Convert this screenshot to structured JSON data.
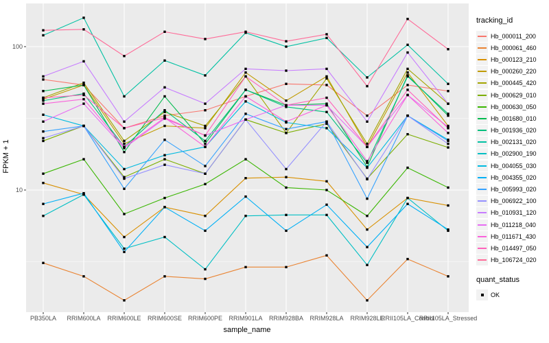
{
  "figure": {
    "y_axis": {
      "label": "FPKM + 1"
    },
    "x_axis": {
      "label": "sample_name"
    },
    "legend": {
      "tracking_title": "tracking_id",
      "quant_title": "quant_status",
      "quant_items": [
        {
          "label": "OK",
          "marker": "black-square"
        }
      ]
    }
  },
  "chart_data": {
    "type": "line",
    "title": "",
    "xlabel": "sample_name",
    "ylabel": "FPKM + 1",
    "y_scale": "log10",
    "ylim": [
      1.4,
      200
    ],
    "y_major_ticks": [
      100,
      10
    ],
    "y_minor_gridlines": [
      31.62,
      3.162
    ],
    "grid": "on",
    "legend_position": "right",
    "point_marker": "black-square",
    "quant_status_all": "OK",
    "panel_bg": "#ebebeb",
    "gridline_color": "#ffffff",
    "categories": [
      "PB350LA",
      "RRIM600LA",
      "RRIM600LE",
      "RRIM600SE",
      "RRIM600PE",
      "RRIM901LA",
      "RRIM928BA",
      "RRIM928LA",
      "RRIM928LE",
      "RRII105LA_Control",
      "RRII105LA_Stressed"
    ],
    "series": [
      {
        "name": "Hb_000011_200",
        "color": "#F8766D",
        "values": [
          59,
          54,
          27,
          33,
          36,
          45,
          55,
          54,
          33,
          54,
          49
        ]
      },
      {
        "name": "Hb_000061_460",
        "color": "#EA8331",
        "values": [
          3.1,
          2.5,
          1.7,
          2.5,
          2.4,
          2.9,
          2.9,
          3.5,
          1.7,
          3.3,
          2.5
        ]
      },
      {
        "name": "Hb_000123_210",
        "color": "#D89000",
        "values": [
          11.2,
          9.3,
          4.7,
          7.6,
          6.6,
          12.1,
          12.3,
          11.5,
          5.3,
          8.8,
          7.8
        ]
      },
      {
        "name": "Hb_000260_220",
        "color": "#C09B00",
        "values": [
          43,
          54,
          21,
          28,
          27,
          66,
          42,
          62,
          20,
          66,
          28
        ]
      },
      {
        "name": "Hb_000445_420",
        "color": "#A3A500",
        "values": [
          44,
          56,
          22,
          35,
          28,
          62,
          25,
          60,
          21,
          70,
          40
        ]
      },
      {
        "name": "Hb_000629_010",
        "color": "#7CAE00",
        "values": [
          22,
          28,
          12.3,
          16.4,
          13,
          31,
          25,
          29,
          12,
          24.5,
          19.8
        ]
      },
      {
        "name": "Hb_000630_050",
        "color": "#39B600",
        "values": [
          13,
          16.4,
          6.8,
          8.8,
          11,
          16.4,
          10.4,
          10,
          6.6,
          14.3,
          10.4
        ]
      },
      {
        "name": "Hb_001680_010",
        "color": "#00BB4E",
        "values": [
          49,
          54,
          18.4,
          45,
          21,
          50,
          39,
          40,
          14.5,
          63,
          33
        ]
      },
      {
        "name": "Hb_001936_020",
        "color": "#00BF7D",
        "values": [
          42,
          47,
          20,
          36,
          22,
          50,
          38,
          35,
          15.5,
          62,
          34
        ]
      },
      {
        "name": "Hb_002131_020",
        "color": "#00C1A3",
        "values": [
          120,
          159,
          45,
          80,
          63,
          125,
          100,
          115,
          61,
          103,
          55
        ]
      },
      {
        "name": "Hb_002900_190",
        "color": "#00BFC4",
        "values": [
          6.6,
          9.3,
          3.9,
          4.7,
          2.8,
          6.6,
          6.7,
          6.7,
          3.0,
          8.8,
          5.2
        ]
      },
      {
        "name": "Hb_004055_030",
        "color": "#00BAE0",
        "values": [
          33.5,
          28,
          14,
          17.5,
          20,
          41.5,
          29.6,
          27,
          14.3,
          33,
          22.4
        ]
      },
      {
        "name": "Hb_004355_020",
        "color": "#00B0F6",
        "values": [
          8.0,
          9.5,
          3.7,
          7.6,
          5.2,
          9.0,
          5.2,
          7.9,
          4.0,
          8.0,
          5.3
        ]
      },
      {
        "name": "Hb_005993_020",
        "color": "#35A2FF",
        "values": [
          25.6,
          28,
          10.2,
          22.4,
          14.7,
          34,
          26.6,
          30,
          8.7,
          33,
          22
        ]
      },
      {
        "name": "Hb_006922_100",
        "color": "#9590FF",
        "values": [
          23,
          28,
          12,
          15,
          13,
          31,
          14,
          30,
          11.9,
          33,
          21
        ]
      },
      {
        "name": "Hb_010931_120",
        "color": "#C77CFF",
        "values": [
          62,
          79,
          30,
          52,
          40,
          70,
          68,
          70,
          30,
          91,
          40
        ]
      },
      {
        "name": "Hb_011218_040",
        "color": "#E76BF3",
        "values": [
          30,
          40,
          19.6,
          31.5,
          24,
          31,
          39,
          39,
          20,
          46,
          27.5
        ]
      },
      {
        "name": "Hb_011671_430",
        "color": "#FA62DB",
        "values": [
          40,
          43,
          20,
          32,
          20,
          45,
          30,
          39,
          15.9,
          46,
          25
        ]
      },
      {
        "name": "Hb_014497_050",
        "color": "#FF62BC",
        "values": [
          44,
          46,
          27,
          32,
          24,
          62,
          39,
          44,
          20,
          50,
          27
        ]
      },
      {
        "name": "Hb_106724_020",
        "color": "#FF6A98",
        "values": [
          130,
          132,
          86,
          127,
          113,
          127,
          109,
          122,
          53,
          156,
          96
        ]
      }
    ]
  }
}
